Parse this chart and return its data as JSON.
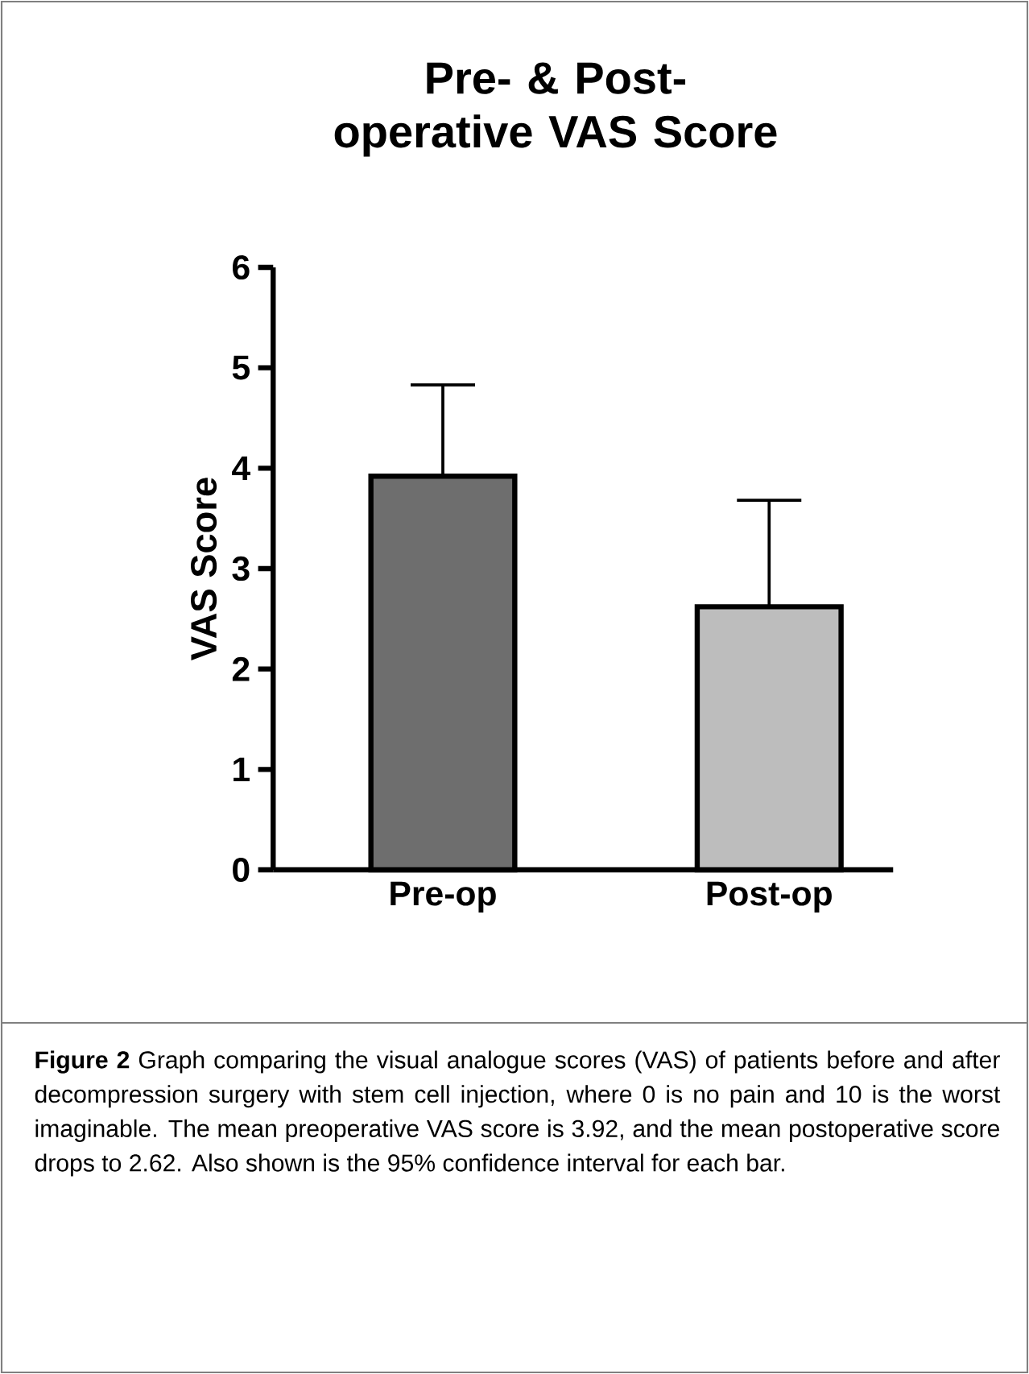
{
  "chart_data": {
    "type": "bar",
    "title": "Pre- & Post-operative VAS Score",
    "ylabel": "VAS Score",
    "categories": [
      "Pre-op",
      "Post-op"
    ],
    "values": [
      3.92,
      2.62
    ],
    "colors": [
      "#6e6e6e",
      "#bdbdbd"
    ],
    "errors": [
      [
        3.92,
        4.83
      ],
      [
        2.62,
        3.68
      ]
    ],
    "ylim": [
      0,
      6
    ],
    "yticks": [
      0,
      1,
      2,
      3,
      4,
      5,
      6
    ],
    "annotations": [
      "**Figure 2**  Graph comparing the visual analogue scores (VAS) of patients before and after decompression surgery with stem cell injection, where 0 is no pain and 10 is the worst imaginable. The mean preoperative VAS score is 3.92, and the mean postoperative score drops to 2.62. Also shown is the 95% confidence interval for each bar."
    ]
  }
}
